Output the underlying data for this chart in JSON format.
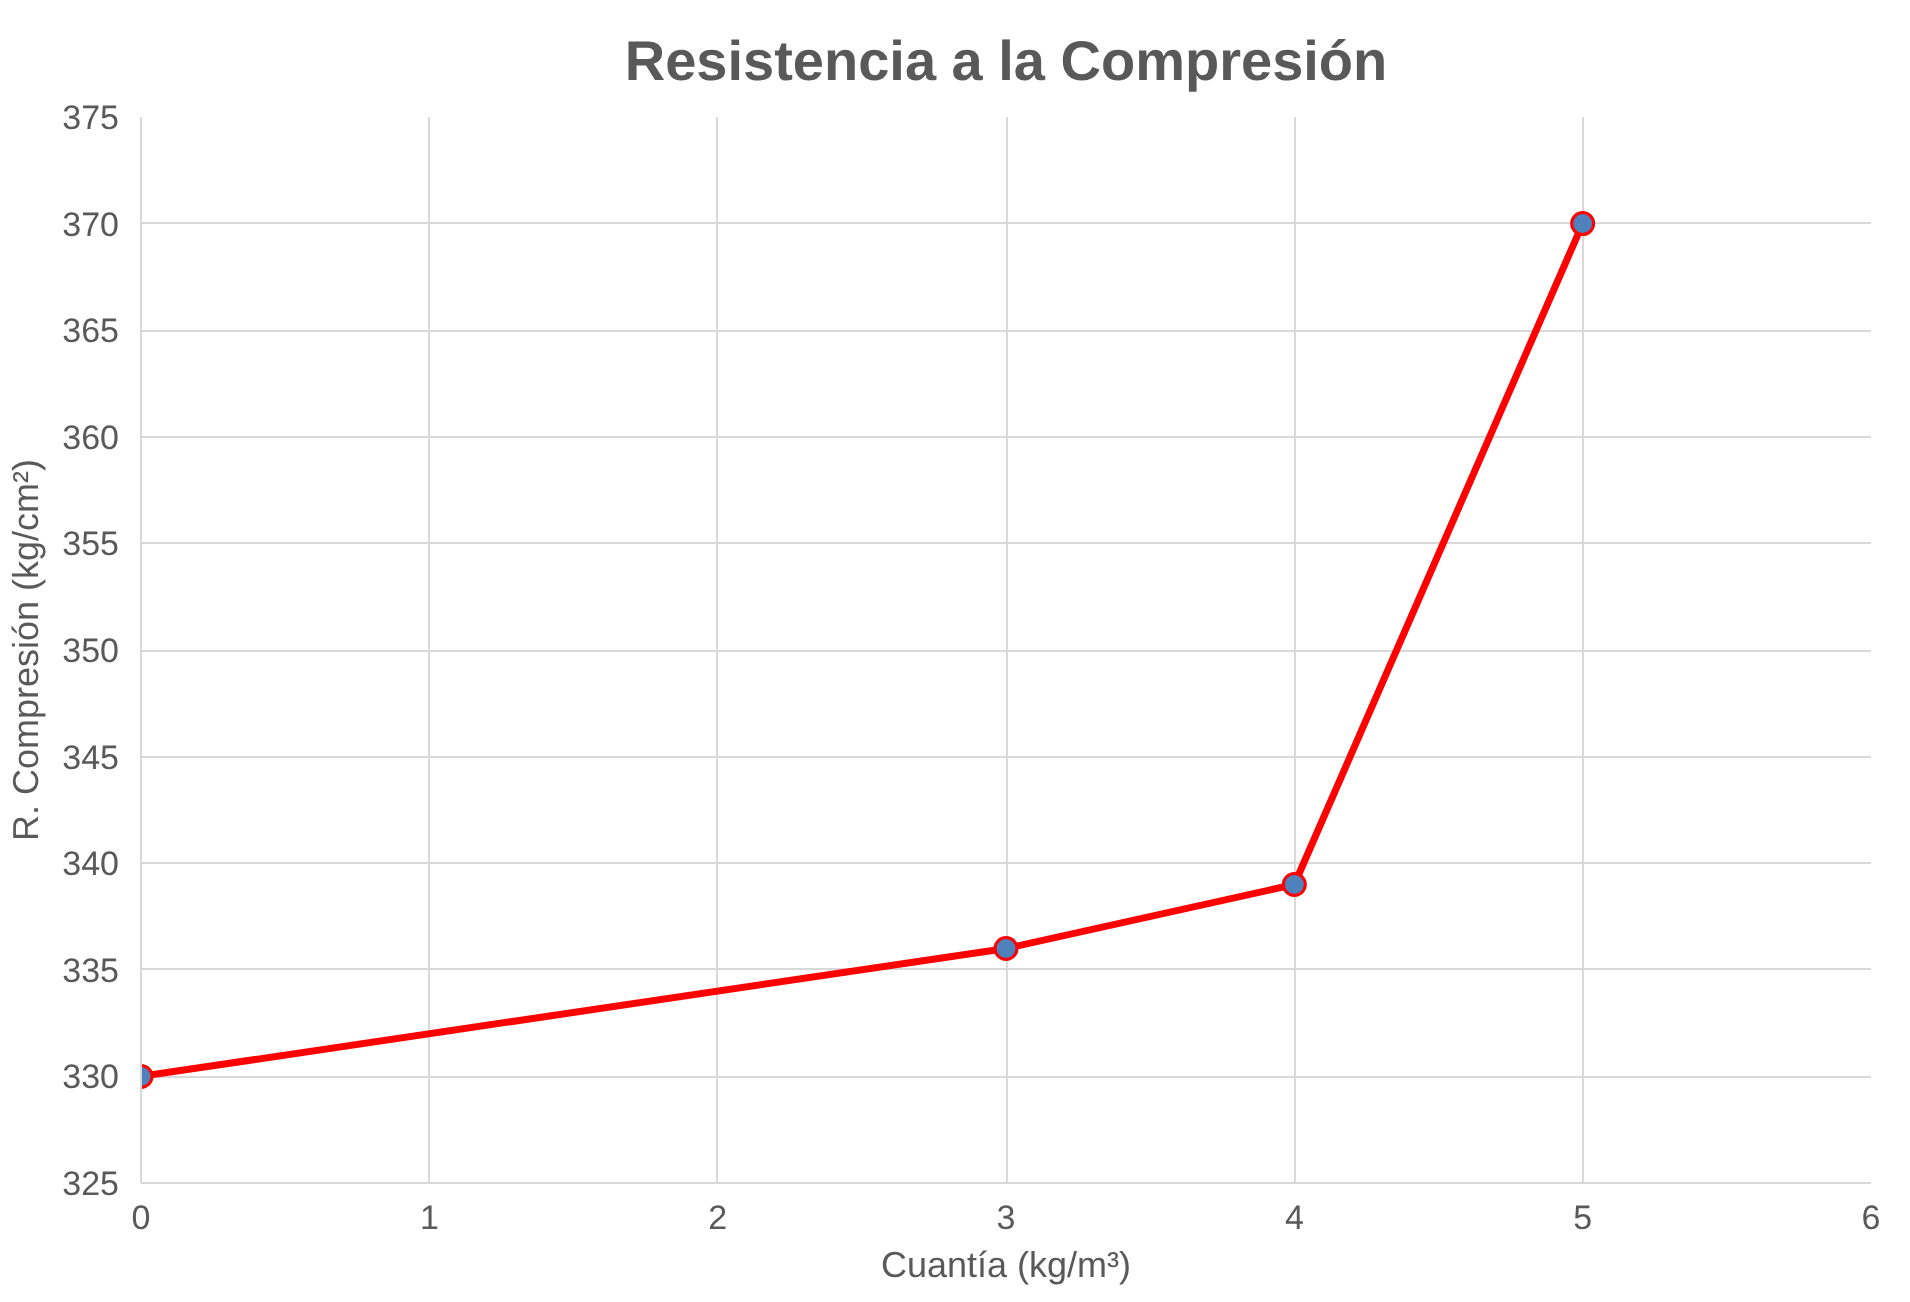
{
  "chart_data": {
    "type": "line",
    "title": "Resistencia a la Compresión",
    "xlabel": "Cuantía (kg/m³)",
    "ylabel": "R. Compresión (kg/cm²)",
    "x": [
      0,
      3,
      4,
      5
    ],
    "series": [
      {
        "color": "#ff0000",
        "values": [
          330,
          336,
          339,
          370
        ]
      }
    ],
    "xlim": [
      0,
      6
    ],
    "xticks": [
      0,
      1,
      2,
      3,
      4,
      5,
      6
    ],
    "ylim": [
      325,
      375
    ],
    "yticks": [
      325,
      330,
      335,
      340,
      345,
      350,
      355,
      360,
      365,
      370,
      375
    ],
    "grid": true,
    "marker": "circle",
    "line_style": "solid"
  }
}
